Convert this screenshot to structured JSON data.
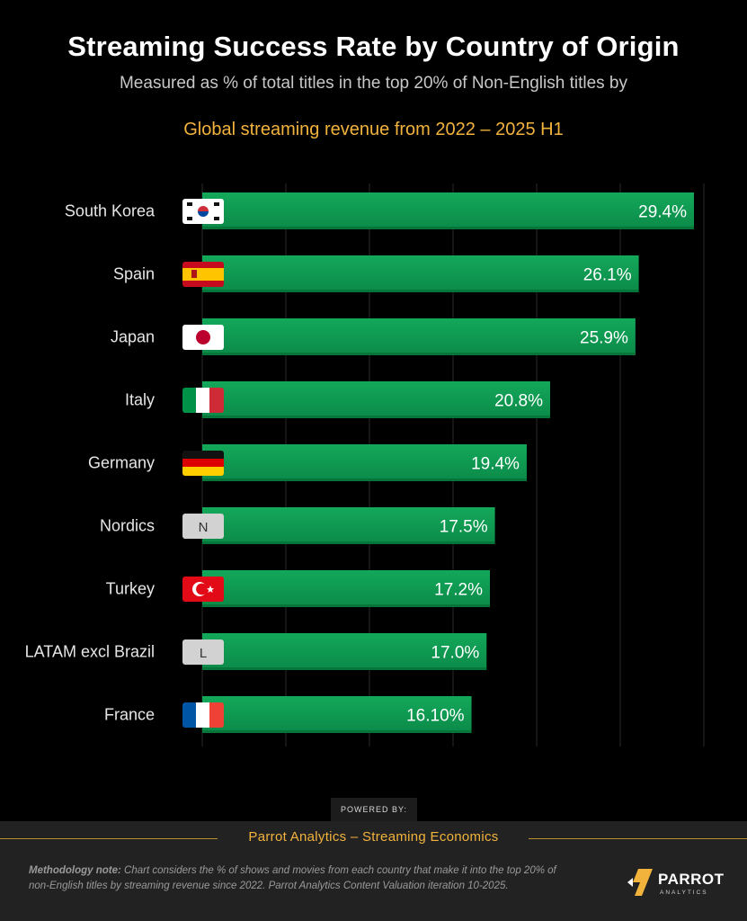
{
  "header": {
    "title": "Streaming Success Rate by Country of Origin",
    "subtitle": "Measured as % of total titles  in the top 20% of Non-English titles by",
    "subtitle2": "Global streaming revenue from 2022 – 2025 H1"
  },
  "chart_data": {
    "type": "bar",
    "orientation": "horizontal",
    "categories": [
      "South Korea",
      "Spain",
      "Japan",
      "Italy",
      "Germany",
      "Nordics",
      "Turkey",
      "LATAM excl Brazil",
      "France"
    ],
    "values": [
      29.4,
      26.1,
      25.9,
      20.8,
      19.4,
      17.5,
      17.2,
      17.0,
      16.1
    ],
    "data_labels": [
      "29.4%",
      "26.1%",
      "25.9%",
      "20.8%",
      "19.4%",
      "17.5%",
      "17.2%",
      "17.0%",
      "16.10%"
    ],
    "flags": [
      "south-korea-flag",
      "spain-flag",
      "japan-flag",
      "italy-flag",
      "germany-flag",
      "nordics-badge",
      "turkey-flag",
      "latam-badge",
      "france-flag"
    ],
    "badge_letters": {
      "Nordics": "N",
      "LATAM excl Brazil": "L"
    },
    "xlim": [
      0,
      30
    ],
    "grid": true,
    "bar_color": "#0e9c52",
    "bar_color_dark": "#06753a"
  },
  "powered_by": "POWERED BY:",
  "footer": {
    "title": "Parrot Analytics – Streaming Economics",
    "methodology_label": "Methodology note:",
    "methodology_text": " Chart considers the % of shows and movies from each country that make it into the top 20% of non-English titles by streaming revenue since 2022.  Parrot Analytics Content Valuation iteration 10-2025."
  },
  "logo": {
    "name": "PARROT",
    "sub": "ANALYTICS",
    "accent": "#f2b33d"
  },
  "colors": {
    "background": "#000000",
    "accent": "#f2b33d",
    "footer": "#222222"
  }
}
